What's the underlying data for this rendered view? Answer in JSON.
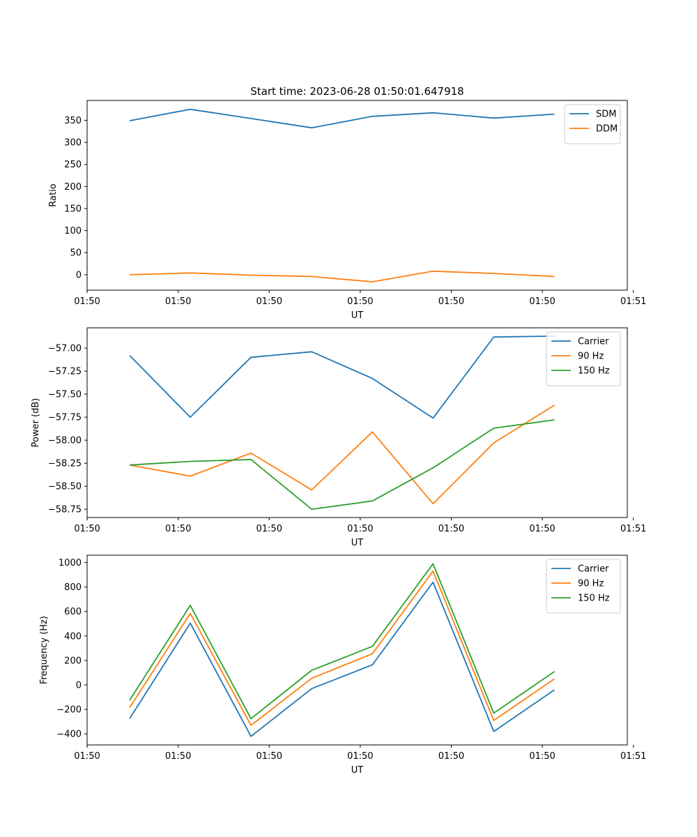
{
  "figure": {
    "title": "Start time: 2023-06-28 01:50:01.647918"
  },
  "colors": {
    "blue": "#1f77b4",
    "orange": "#ff7f0e",
    "green": "#2ca02c"
  },
  "chart_data": [
    {
      "type": "line",
      "title": "Start time: 2023-06-28 01:50:01.647918",
      "xlabel": "UT",
      "ylabel": "Ratio",
      "x": [
        1,
        2,
        3,
        4,
        5,
        6,
        7,
        8
      ],
      "x_ticks": [
        "01:50",
        "01:50",
        "01:50",
        "01:50",
        "01:50",
        "01:50",
        "01:51"
      ],
      "ylim": [
        -35,
        395
      ],
      "y_ticks": [
        0,
        50,
        100,
        150,
        200,
        250,
        300,
        350
      ],
      "y_tick_labels": [
        "0",
        "50",
        "100",
        "150",
        "200",
        "250",
        "300",
        "350"
      ],
      "legend": "upper right",
      "series": [
        {
          "name": "SDM",
          "color": "#1f77b4",
          "values": [
            349,
            375,
            354,
            333,
            359,
            367,
            355,
            364
          ]
        },
        {
          "name": "DDM",
          "color": "#ff7f0e",
          "values": [
            0,
            4,
            -1,
            -4,
            -16,
            8,
            3,
            -4
          ]
        }
      ]
    },
    {
      "type": "line",
      "xlabel": "UT",
      "ylabel": "Power (dB)",
      "x": [
        1,
        2,
        3,
        4,
        5,
        6,
        7,
        8
      ],
      "x_ticks": [
        "01:50",
        "01:50",
        "01:50",
        "01:50",
        "01:50",
        "01:50",
        "01:51"
      ],
      "ylim": [
        -58.84,
        -56.78
      ],
      "y_ticks": [
        -58.75,
        -58.5,
        -58.25,
        -58.0,
        -57.75,
        -57.5,
        -57.25,
        -57.0
      ],
      "y_tick_labels": [
        "−58.75",
        "−58.50",
        "−58.25",
        "−58.00",
        "−57.75",
        "−57.50",
        "−57.25",
        "−57.00"
      ],
      "legend": "upper right",
      "series": [
        {
          "name": "Carrier",
          "color": "#1f77b4",
          "values": [
            -57.08,
            -57.75,
            -57.1,
            -57.04,
            -57.33,
            -57.76,
            -56.88,
            -56.87
          ]
        },
        {
          "name": "90 Hz",
          "color": "#ff7f0e",
          "values": [
            -58.27,
            -58.39,
            -58.14,
            -58.54,
            -57.91,
            -58.69,
            -58.03,
            -57.62
          ]
        },
        {
          "name": "150 Hz",
          "color": "#2ca02c",
          "values": [
            -58.27,
            -58.23,
            -58.21,
            -58.75,
            -58.66,
            -58.3,
            -57.87,
            -57.78
          ]
        }
      ]
    },
    {
      "type": "line",
      "xlabel": "UT",
      "ylabel": "Frequency (Hz)",
      "x": [
        1,
        2,
        3,
        4,
        5,
        6,
        7,
        8
      ],
      "x_ticks": [
        "01:50",
        "01:50",
        "01:50",
        "01:50",
        "01:50",
        "01:50",
        "01:51"
      ],
      "ylim": [
        -490,
        1060
      ],
      "y_ticks": [
        -400,
        -200,
        0,
        200,
        400,
        600,
        800,
        1000
      ],
      "y_tick_labels": [
        "−400",
        "−200",
        "0",
        "200",
        "400",
        "600",
        "800",
        "1000"
      ],
      "legend": "upper right",
      "series": [
        {
          "name": "Carrier",
          "color": "#1f77b4",
          "values": [
            -275,
            505,
            -420,
            -30,
            165,
            840,
            -380,
            -40
          ]
        },
        {
          "name": "90 Hz",
          "color": "#ff7f0e",
          "values": [
            -185,
            585,
            -330,
            55,
            255,
            930,
            -290,
            50
          ]
        },
        {
          "name": "150 Hz",
          "color": "#2ca02c",
          "values": [
            -125,
            650,
            -275,
            120,
            315,
            990,
            -230,
            110
          ]
        }
      ]
    }
  ]
}
